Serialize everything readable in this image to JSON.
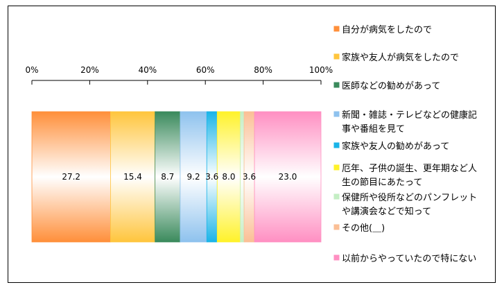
{
  "chart_data": {
    "type": "bar",
    "orientation": "horizontal-stacked-100",
    "x_ticks": [
      "0%",
      "20%",
      "40%",
      "60%",
      "80%",
      "100%"
    ],
    "xlim": [
      0,
      100
    ],
    "series": [
      {
        "name": "自分が病気をしたので",
        "value": 27.2,
        "label": "27.2",
        "color": "#FF8F3A"
      },
      {
        "name": "家族や友人が病気をしたので",
        "value": 15.4,
        "label": "15.4",
        "color": "#FFC53D"
      },
      {
        "name": "医師などの勧めがあって",
        "value": 8.7,
        "label": "8.7",
        "color": "#3A8A5C"
      },
      {
        "name": "新聞・雑誌・テレビなどの健康記事や番組を見て",
        "value": 9.2,
        "label": "9.2",
        "color": "#8EC2EE"
      },
      {
        "name": "家族や友人の勧めがあって",
        "value": 3.6,
        "label": "3.6",
        "color": "#1AB4E8"
      },
      {
        "name": "厄年、子供の誕生、更年期など人生の節目にあたって",
        "value": 8.0,
        "label": "8.0",
        "color": "#FFF22A"
      },
      {
        "name": "保健所や役所などのパンフレットや講演会などで知って",
        "value": 1.3,
        "label": "",
        "color": "#C4EEC4"
      },
      {
        "name": "その他(＿)",
        "value": 3.6,
        "label": "3.6",
        "color": "#FBBF95"
      },
      {
        "name": "以前からやっていたので特にない",
        "value": 23.0,
        "label": "23.0",
        "color": "#FF8FC2"
      }
    ],
    "legend_position": "right",
    "grid": false
  }
}
